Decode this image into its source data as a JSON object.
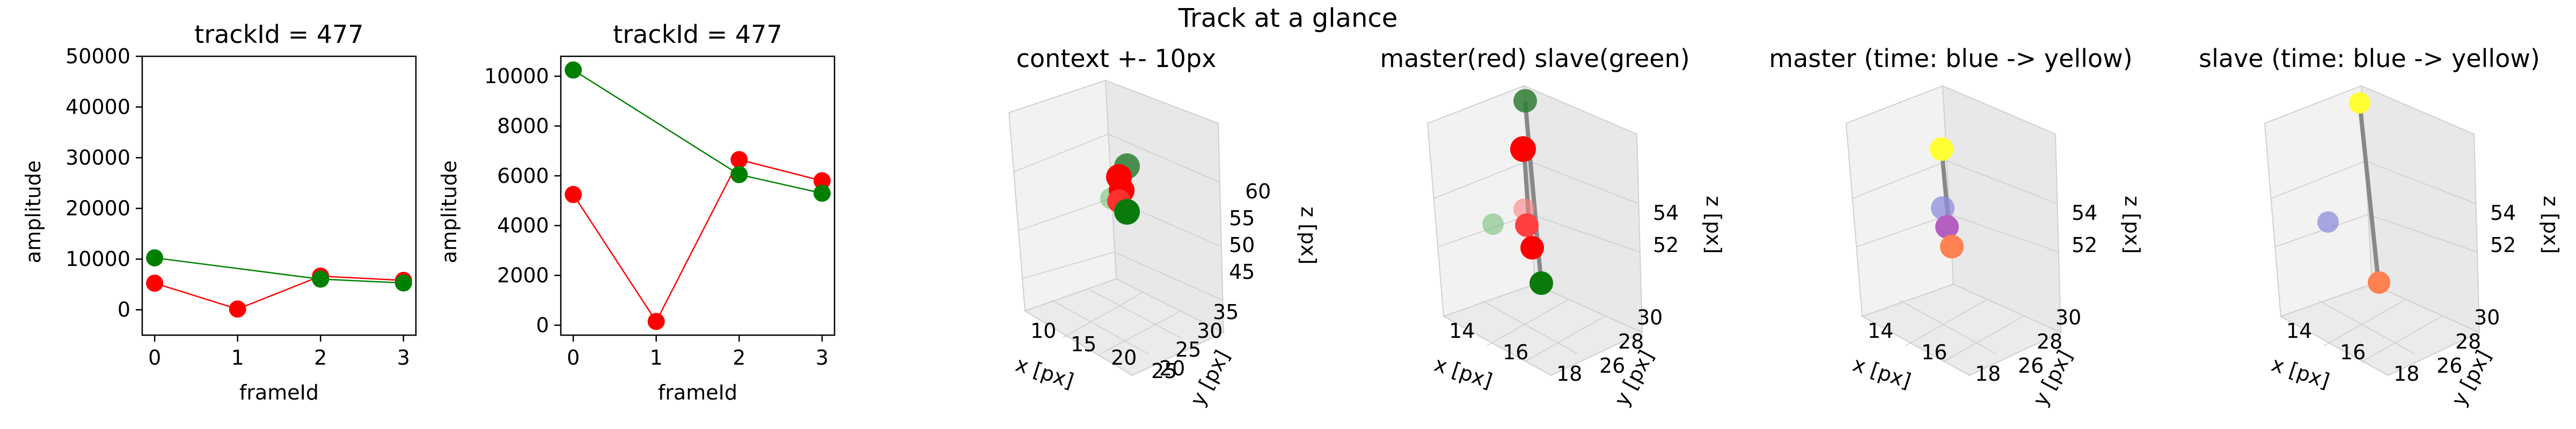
{
  "figure": {
    "suptitle": "Track at a glance"
  },
  "chart_data": [
    {
      "type": "line",
      "title": "trackId = 477",
      "xlabel": "frameId",
      "ylabel": "amplitude",
      "xlim": [
        -0.15,
        3.15
      ],
      "ylim": [
        -5000,
        50000
      ],
      "xticks": [
        0,
        1,
        2,
        3
      ],
      "yticks": [
        0,
        10000,
        20000,
        30000,
        40000,
        50000
      ],
      "series": [
        {
          "color": "#ff0000",
          "x": [
            0,
            1,
            2,
            3
          ],
          "values": [
            5250,
            150,
            6650,
            5800
          ]
        },
        {
          "color": "#008000",
          "x": [
            0,
            2,
            3
          ],
          "values": [
            10250,
            6050,
            5300
          ]
        }
      ]
    },
    {
      "type": "line",
      "title": "trackId = 477",
      "xlabel": "frameId",
      "ylabel": "amplitude",
      "xlim": [
        -0.15,
        3.15
      ],
      "ylim": [
        -400,
        10800
      ],
      "xticks": [
        0,
        1,
        2,
        3
      ],
      "yticks": [
        0,
        2000,
        4000,
        6000,
        8000,
        10000
      ],
      "series": [
        {
          "color": "#ff0000",
          "x": [
            0,
            1,
            2,
            3
          ],
          "values": [
            5250,
            150,
            6650,
            5800
          ]
        },
        {
          "color": "#008000",
          "x": [
            0,
            2,
            3
          ],
          "values": [
            10250,
            6050,
            5300
          ]
        }
      ]
    },
    {
      "type": "scatter",
      "title": "context +- 10px",
      "xlabel": "x [px]",
      "ylabel": "y [px]",
      "zlabel": "z [px]",
      "xticks": [
        "10",
        "15",
        "20",
        "25"
      ],
      "yticks": [
        "20",
        "25",
        "30",
        "35"
      ],
      "zticks": [
        "45",
        "50",
        "55",
        "60"
      ]
    },
    {
      "type": "scatter",
      "title": "master(red) slave(green)",
      "xlabel": "x [px]",
      "ylabel": "y [px]",
      "zlabel": "z [px]",
      "xticks": [
        "14",
        "16",
        "18"
      ],
      "yticks": [
        "26",
        "28",
        "30"
      ],
      "zticks": [
        "52",
        "54"
      ]
    },
    {
      "type": "scatter",
      "title": "master (time: blue -> yellow)",
      "xlabel": "x [px]",
      "ylabel": "y [px]",
      "zlabel": "z [px]",
      "xticks": [
        "14",
        "16",
        "18"
      ],
      "yticks": [
        "26",
        "28",
        "30"
      ],
      "zticks": [
        "52",
        "54"
      ]
    },
    {
      "type": "scatter",
      "title": "slave (time: blue -> yellow)",
      "xlabel": "x [px]",
      "ylabel": "y [px]",
      "zlabel": "z [px]",
      "xticks": [
        "14",
        "16",
        "18"
      ],
      "yticks": [
        "26",
        "28",
        "30"
      ],
      "zticks": [
        "52",
        "54"
      ]
    }
  ]
}
